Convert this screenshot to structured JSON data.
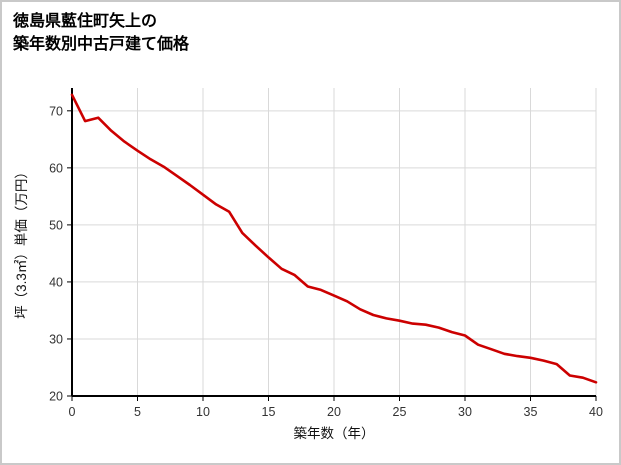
{
  "header": {
    "title_line1": "徳島県藍住町矢上の",
    "title_line2": "築年数別中古戸建て価格"
  },
  "chart_data": {
    "type": "line",
    "title": "徳島県藍住町矢上の築年数別中古戸建て価格",
    "xlabel": "築年数（年）",
    "ylabel": "坪（3.3㎡）単価（万円）",
    "xlim": [
      0,
      40
    ],
    "ylim": [
      20,
      74
    ],
    "xticks": [
      0,
      5,
      10,
      15,
      20,
      25,
      30,
      35,
      40
    ],
    "yticks": [
      20,
      30,
      40,
      50,
      60,
      70
    ],
    "grid": true,
    "grid_color": "#d9d9d9",
    "axis_color": "#000000",
    "line_color": "#cc0000",
    "x": [
      0,
      1,
      2,
      3,
      4,
      5,
      6,
      7,
      8,
      9,
      10,
      11,
      12,
      13,
      14,
      15,
      16,
      17,
      18,
      19,
      20,
      21,
      22,
      23,
      24,
      25,
      26,
      27,
      28,
      29,
      30,
      31,
      32,
      33,
      34,
      35,
      36,
      37,
      38,
      39,
      40
    ],
    "series": [
      {
        "color": "#cc0000",
        "values": [
          72.8,
          68.2,
          68.8,
          66.5,
          64.6,
          63.0,
          61.5,
          60.2,
          58.6,
          57.0,
          55.3,
          53.6,
          52.3,
          48.6,
          46.4,
          44.3,
          42.3,
          41.2,
          39.2,
          38.6,
          37.6,
          36.6,
          35.2,
          34.2,
          33.6,
          33.2,
          32.7,
          32.5,
          32.0,
          31.2,
          30.6,
          29.0,
          28.2,
          27.4,
          27.0,
          26.7,
          26.2,
          25.6,
          23.6,
          23.2,
          22.4
        ]
      }
    ]
  }
}
